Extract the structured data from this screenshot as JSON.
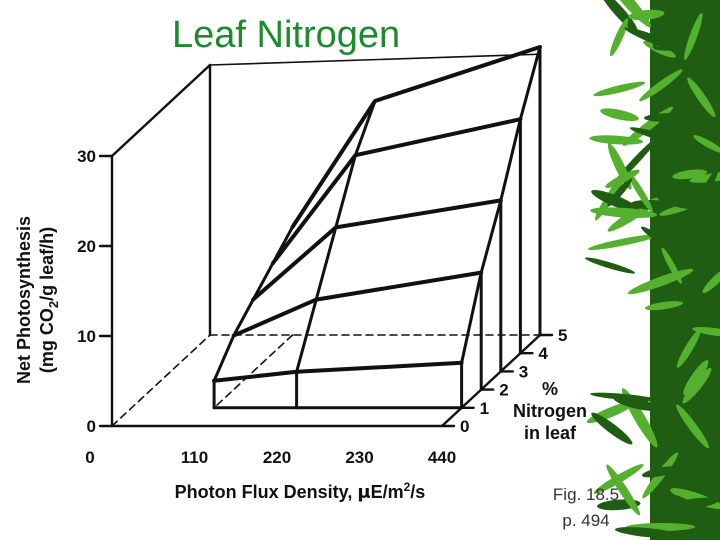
{
  "title": "Leaf Nitrogen",
  "figure_ref": {
    "line1": "Fig. 18.5",
    "line2": "p. 494"
  },
  "colors": {
    "title": "#1d8a2f",
    "ink": "#111111",
    "leaf_dark": "#1f5e12",
    "leaf_light": "#55b030"
  },
  "decoration": {
    "right_edge": "bamboo-leaf-border"
  },
  "chart_data": {
    "type": "surface3d",
    "title": "",
    "ylabel": {
      "line1": "Net Photosynthesis",
      "line2_prefix": "(mg CO",
      "line2_sub": "2",
      "line2_suffix": "/g leaf/h)"
    },
    "xlabel": {
      "prefix": "Photon Flux Density, ",
      "mu": "μ",
      "unit": "E/m",
      "sup": "2",
      "suffix": "/s"
    },
    "zlabel": {
      "line1": "%",
      "line2": "Nitrogen",
      "line3": "in leaf"
    },
    "y_ticks": [
      "0",
      "10",
      "20",
      "30"
    ],
    "x_ticks": [
      "0",
      "110",
      "220",
      "230",
      "440"
    ],
    "z_ticks": [
      "0",
      "1",
      "2",
      "3",
      "4",
      "5"
    ],
    "ylim": [
      0,
      30
    ],
    "xlim": [
      0,
      440
    ],
    "zlim": [
      0,
      5
    ],
    "light_levels": [
      110,
      220,
      440
    ],
    "nitrogen_levels": [
      1,
      2,
      3,
      4,
      5
    ],
    "light_levels_drawn_as": "vertical curves at low, middle and high light",
    "surface": [
      {
        "nitrogen": 1,
        "photosynthesis_by_light": [
          3,
          4,
          5
        ]
      },
      {
        "nitrogen": 2,
        "photosynthesis_by_light": [
          6,
          10,
          13
        ]
      },
      {
        "nitrogen": 3,
        "photosynthesis_by_light": [
          8,
          16,
          19
        ]
      },
      {
        "nitrogen": 4,
        "photosynthesis_by_light": [
          10,
          22,
          26
        ]
      },
      {
        "nitrogen": 5,
        "photosynthesis_by_light": [
          12,
          26,
          32
        ]
      }
    ]
  }
}
